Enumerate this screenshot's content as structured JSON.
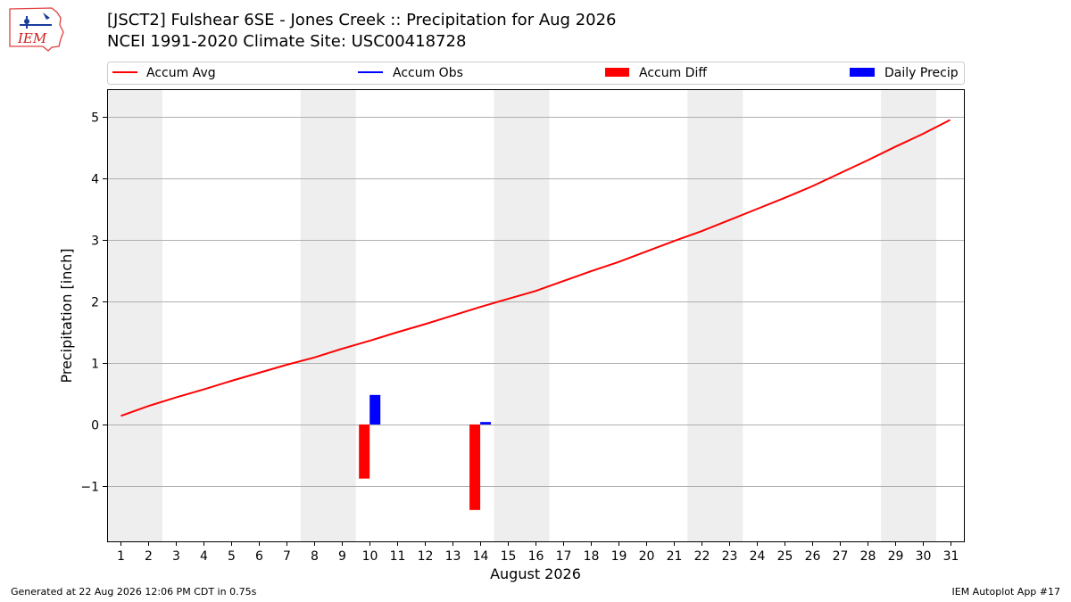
{
  "header": {
    "title_line1": "[JSCT2] Fulshear 6SE - Jones Creek :: Precipitation for Aug 2026",
    "title_line2": "NCEI 1991-2020 Climate Site: USC00418728"
  },
  "logo": {
    "text": "IEM"
  },
  "footer": {
    "left": "Generated at 22 Aug 2026 12:06 PM CDT in 0.75s",
    "right": "IEM Autoplot App #17"
  },
  "colors": {
    "accum_avg": "#ff0000",
    "accum_obs": "#0000ff",
    "accum_diff": "#ff0000",
    "daily_precip": "#0000ff",
    "weekend_shade": "#eeeeee",
    "grid": "#b0b0b0"
  },
  "chart_data": {
    "type": "bar",
    "xlabel": "August 2026",
    "ylabel": "Precipitation [inch]",
    "xlim": [
      0.5,
      31.5
    ],
    "ylim": [
      -1.9,
      5.45
    ],
    "xticks": [
      1,
      2,
      3,
      4,
      5,
      6,
      7,
      8,
      9,
      10,
      11,
      12,
      13,
      14,
      15,
      16,
      17,
      18,
      19,
      20,
      21,
      22,
      23,
      24,
      25,
      26,
      27,
      28,
      29,
      30,
      31
    ],
    "yticks": [
      -1,
      0,
      1,
      2,
      3,
      4,
      5
    ],
    "ytick_labels": [
      "−1",
      "0",
      "1",
      "2",
      "3",
      "4",
      "5"
    ],
    "grid": "horizontal",
    "legend_position": "top",
    "legend": [
      "Accum Avg",
      "Accum Obs",
      "Accum Diff",
      "Daily Precip"
    ],
    "weekend_days": [
      1,
      2,
      8,
      9,
      15,
      16,
      22,
      23,
      29,
      30
    ],
    "accum_avg": {
      "x": [
        1,
        2,
        3,
        4,
        5,
        6,
        7,
        8,
        9,
        10,
        11,
        12,
        13,
        14,
        15,
        16,
        17,
        18,
        19,
        20,
        21,
        22,
        23,
        24,
        25,
        26,
        27,
        28,
        29,
        30,
        31
      ],
      "y": [
        0.14,
        0.3,
        0.44,
        0.57,
        0.71,
        0.84,
        0.97,
        1.09,
        1.23,
        1.36,
        1.5,
        1.63,
        1.77,
        1.91,
        2.04,
        2.17,
        2.33,
        2.49,
        2.64,
        2.81,
        2.98,
        3.14,
        3.32,
        3.5,
        3.68,
        3.87,
        4.08,
        4.29,
        4.51,
        4.72,
        4.95
      ]
    },
    "accum_diff": {
      "x": [
        10,
        14
      ],
      "y": [
        -0.88,
        -1.39
      ]
    },
    "daily_precip": {
      "x": [
        10,
        14
      ],
      "y": [
        0.48,
        0.04
      ]
    }
  }
}
